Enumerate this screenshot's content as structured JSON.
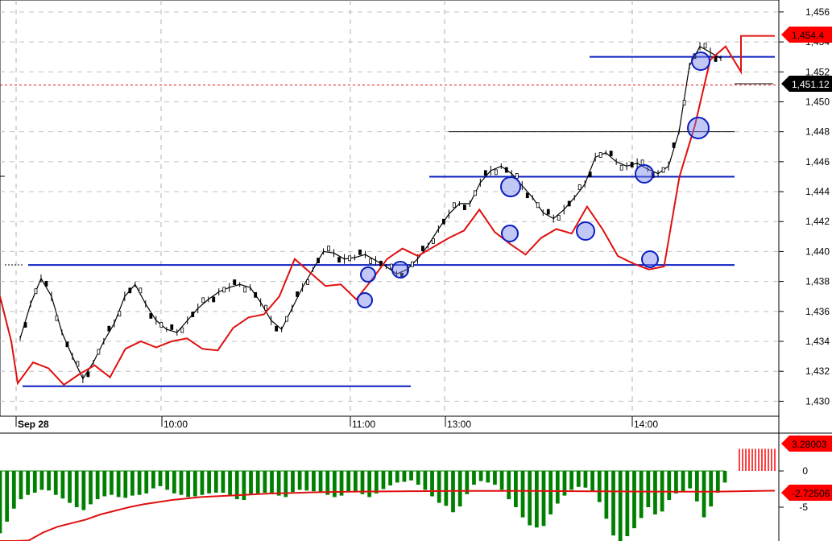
{
  "chart_data": {
    "type": "line",
    "ticker_panel": {
      "y_range": [
        1429.0,
        1456.8
      ],
      "y_ticks": [
        "1,456",
        "1,454",
        "1,452",
        "1,450",
        "1,448",
        "1,446",
        "1,444",
        "1,442",
        "1,440",
        "1,438",
        "1,436",
        "1,434",
        "1,432",
        "1,430"
      ],
      "x_ticks": [
        "Sep 28",
        "10:00",
        "11:00",
        "13:00",
        "14:00"
      ],
      "current_price_label": "1,454.4",
      "ref_price_label": "1,451.12",
      "ref_price": 1451.12,
      "colors": {
        "price": "#000000",
        "line": "#e01010",
        "levels": "#0b1fc0",
        "badge_red": "#ff0000",
        "badge_black": "#000000"
      },
      "x": [
        0,
        1,
        2,
        3,
        4,
        5,
        6,
        7,
        8,
        9,
        10,
        11,
        12,
        13,
        14,
        15,
        16,
        17,
        18,
        19,
        20,
        21,
        22,
        23,
        24,
        25,
        26,
        27,
        28,
        29,
        30,
        31,
        32,
        33,
        34,
        35,
        36,
        37,
        38,
        39,
        40,
        41,
        42,
        43,
        44,
        45,
        46,
        47,
        48,
        49,
        50,
        51,
        52,
        53,
        54,
        55,
        56,
        57,
        58,
        59,
        60,
        61,
        62,
        63,
        64,
        65,
        66,
        67,
        68,
        69,
        70,
        71,
        72,
        73,
        74,
        75,
        76,
        77,
        78,
        79,
        80,
        81,
        82,
        83,
        84,
        85,
        86,
        87,
        88,
        89,
        90,
        91,
        92,
        93,
        94,
        95,
        96,
        97,
        98,
        99
      ],
      "price": [
        1434.2,
        1436.5,
        1438.2,
        1437.0,
        1434.6,
        1433.0,
        1431.5,
        1432.6,
        1434.0,
        1435.2,
        1437.0,
        1437.8,
        1436.5,
        1435.4,
        1434.8,
        1434.6,
        1435.4,
        1436.2,
        1436.8,
        1437.3,
        1437.6,
        1437.8,
        1437.6,
        1436.6,
        1435.4,
        1434.8,
        1436.2,
        1437.6,
        1438.8,
        1440.0,
        1439.9,
        1439.5,
        1439.6,
        1439.8,
        1439.4,
        1439.0,
        1438.5,
        1438.8,
        1439.5,
        1440.4,
        1441.5,
        1442.5,
        1443.2,
        1443.2,
        1444.6,
        1445.4,
        1445.7,
        1445.2,
        1444.4,
        1443.6,
        1442.6,
        1442.2,
        1442.8,
        1443.6,
        1444.5,
        1446.3,
        1446.6,
        1446.0,
        1445.7,
        1445.9,
        1445.5,
        1445.2,
        1445.7,
        1448.0,
        1452.4,
        1453.7,
        1453.3,
        1452.9
      ],
      "line": [
        1431.2,
        1432.6,
        1432.2,
        1431.1,
        1431.8,
        1432.4,
        1431.6,
        1433.5,
        1434.0,
        1433.6,
        1434.0,
        1434.2,
        1433.5,
        1433.4,
        1434.9,
        1435.6,
        1435.8,
        1437.0,
        1439.5,
        1438.6,
        1437.7,
        1437.8,
        1436.8,
        1438.1,
        1439.5,
        1440.2,
        1439.7,
        1440.3,
        1440.9,
        1441.4,
        1442.8,
        1441.3,
        1440.5,
        1439.8,
        1440.9,
        1441.5,
        1441.2,
        1443.0,
        1441.5,
        1439.7,
        1439.2,
        1438.8,
        1439.0,
        1445.0,
        1448.4,
        1452.8,
        1453.7,
        1452.0,
        1454.4,
        1454.4
      ],
      "levels": [
        {
          "value": 1439.1,
          "x0": 1,
          "x1": 61
        },
        {
          "value": 1431.0,
          "x0": 1,
          "x1": 33
        },
        {
          "value": 1445.0,
          "x0": 34,
          "x1": 61
        },
        {
          "value": 1448.0,
          "x0": 36,
          "x1": 61
        },
        {
          "value": 1453.0,
          "x0": 48,
          "x1": 63
        }
      ]
    },
    "indicator_panel": {
      "y_ticks": [
        "0",
        "-5"
      ],
      "upper_label": "3.28003",
      "lower_label": "-2.72506",
      "colors": {
        "hist": "#008000",
        "line": "#e01010",
        "bars_positive": "#ff0000"
      },
      "histogram": [
        -8.6,
        -7.0,
        -5.2,
        -3.9,
        -3.3,
        -3.0,
        -2.6,
        -2.7,
        -3.3,
        -3.8,
        -4.4,
        -5.0,
        -5.4,
        -4.6,
        -3.9,
        -3.5,
        -3.3,
        -3.6,
        -3.7,
        -3.4,
        -3.3,
        -3.1,
        -2.4,
        -2.1,
        -2.6,
        -3.1,
        -3.3,
        -3.6,
        -3.5,
        -3.3,
        -3.1,
        -3.0,
        -3.0,
        -3.5,
        -3.9,
        -4.0,
        -3.3,
        -3.1,
        -3.0,
        -3.2,
        -3.4,
        -3.6,
        -2.9,
        -2.6,
        -2.7,
        -2.8,
        -3.0,
        -3.3,
        -3.6,
        -3.4,
        -2.9,
        -2.8,
        -3.2,
        -3.6,
        -3.1,
        -2.5,
        -2.0,
        -1.6,
        -1.5,
        -1.3,
        -1.9,
        -2.6,
        -3.5,
        -4.4,
        -4.8,
        -5.7,
        -4.9,
        -3.2,
        -1.9,
        -1.4,
        -1.6,
        -1.9,
        -2.6,
        -3.9,
        -5.0,
        -6.4,
        -7.5,
        -7.8,
        -7.6,
        -6.0,
        -4.5,
        -3.4,
        -2.6,
        -2.2,
        -2.3,
        -2.8,
        -4.3,
        -6.6,
        -8.9,
        -10.1,
        -9.0,
        -7.9,
        -6.5,
        -5.0,
        -6.0,
        -5.6,
        -4.0,
        -3.1,
        -2.9,
        -2.4,
        -4.2,
        -6.4,
        -4.9,
        -3.0,
        -1.6
      ],
      "signal": [
        -12.5,
        -11.0,
        -9.6,
        -8.5,
        -7.7,
        -7.2,
        -6.7,
        -6.0,
        -5.5,
        -5.0,
        -4.6,
        -4.3,
        -4.0,
        -3.8,
        -3.6,
        -3.5,
        -3.4,
        -3.3,
        -3.2,
        -3.1,
        -3.05,
        -3.0,
        -2.95,
        -2.9,
        -2.88,
        -2.85,
        -2.83,
        -2.82,
        -2.8,
        -2.79,
        -2.78,
        -2.77,
        -2.76,
        -2.76,
        -2.76,
        -2.76,
        -2.76,
        -2.76,
        -2.77,
        -2.78,
        -2.79,
        -2.8,
        -2.81,
        -2.82,
        -2.83,
        -2.84,
        -2.85,
        -2.86,
        -2.87,
        -2.86,
        -2.85,
        -2.82,
        -2.78,
        -2.75,
        -2.725
      ],
      "positive_bars": 3.28003
    }
  }
}
